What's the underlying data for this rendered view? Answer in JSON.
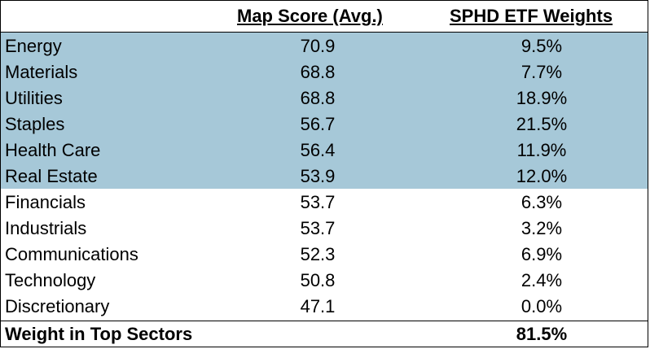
{
  "chart_data": {
    "type": "table",
    "columns": [
      "",
      "Map Score (Avg.)",
      "SPHD ETF Weights"
    ],
    "rows": [
      {
        "sector": "Energy",
        "score": "70.9",
        "weight": "9.5%",
        "highlight": true
      },
      {
        "sector": "Materials",
        "score": "68.8",
        "weight": "7.7%",
        "highlight": true
      },
      {
        "sector": "Utilities",
        "score": "68.8",
        "weight": "18.9%",
        "highlight": true
      },
      {
        "sector": "Staples",
        "score": "56.7",
        "weight": "21.5%",
        "highlight": true
      },
      {
        "sector": "Health Care",
        "score": "56.4",
        "weight": "11.9%",
        "highlight": true
      },
      {
        "sector": "Real Estate",
        "score": "53.9",
        "weight": "12.0%",
        "highlight": true
      },
      {
        "sector": "Financials",
        "score": "53.7",
        "weight": "6.3%",
        "highlight": false
      },
      {
        "sector": "Industrials",
        "score": "53.7",
        "weight": "3.2%",
        "highlight": false
      },
      {
        "sector": "Communications",
        "score": "52.3",
        "weight": "6.9%",
        "highlight": false
      },
      {
        "sector": "Technology",
        "score": "50.8",
        "weight": "2.4%",
        "highlight": false
      },
      {
        "sector": "Discretionary",
        "score": "47.1",
        "weight": "0.0%",
        "highlight": false
      }
    ],
    "footer": {
      "label": "Weight in Top Sectors",
      "value": "81.5%"
    },
    "highlight_color": "#a6c8d8"
  }
}
